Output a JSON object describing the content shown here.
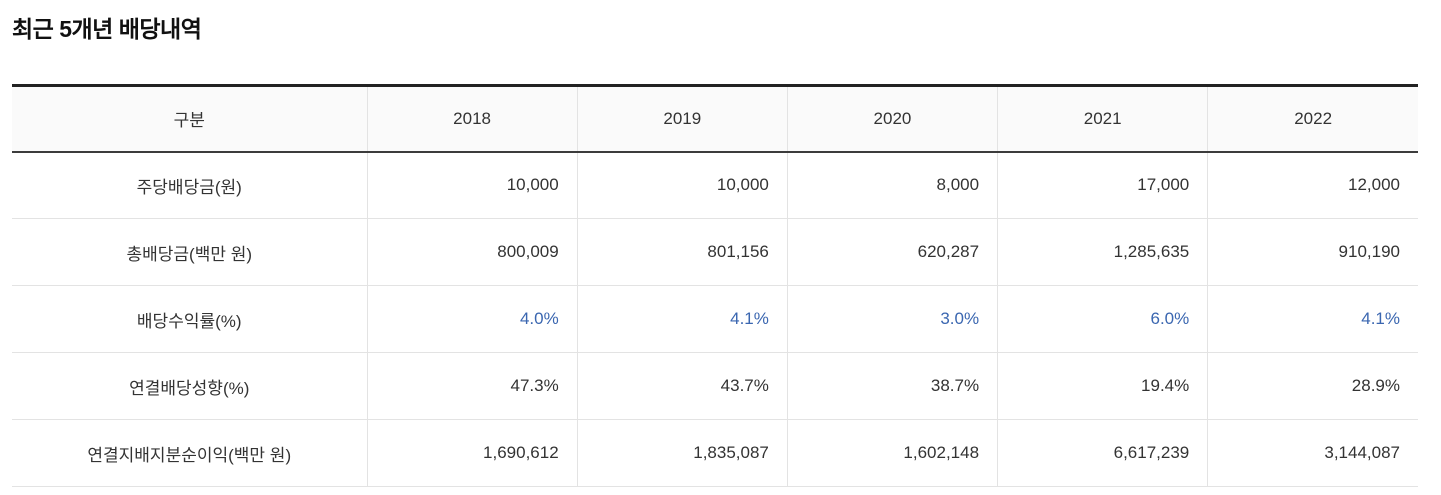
{
  "section": {
    "title": "최근 5개년 배당내역"
  },
  "table": {
    "columns": [
      "구분",
      "2018",
      "2019",
      "2020",
      "2021",
      "2022"
    ],
    "rows": [
      {
        "label": "주당배당금(원)",
        "values": [
          "10,000",
          "10,000",
          "8,000",
          "17,000",
          "12,000"
        ]
      },
      {
        "label": "총배당금(백만 원)",
        "values": [
          "800,009",
          "801,156",
          "620,287",
          "1,285,635",
          "910,190"
        ]
      },
      {
        "label": "배당수익률(%)",
        "values": [
          "4.0%",
          "4.1%",
          "3.0%",
          "6.0%",
          "4.1%"
        ]
      },
      {
        "label": "연결배당성향(%)",
        "values": [
          "47.3%",
          "43.7%",
          "38.7%",
          "19.4%",
          "28.9%"
        ]
      },
      {
        "label": "연결지배지분순이익(백만 원)",
        "values": [
          "1,690,612",
          "1,835,087",
          "1,602,148",
          "6,617,239",
          "3,144,087"
        ]
      }
    ]
  },
  "colors": {
    "title_text": "#111111",
    "text": "#333333",
    "accent_value_blue": "#3a66b0",
    "border_dark": "#222222",
    "border_header": "#3c3c3c",
    "border_light": "#e3e3e3",
    "header_bg": "#fafafa"
  },
  "chart_data": {
    "type": "table",
    "title": "최근 5개년 배당내역",
    "row_header": "구분",
    "categories": [
      "2018",
      "2019",
      "2020",
      "2021",
      "2022"
    ],
    "series": [
      {
        "name": "주당배당금(원)",
        "unit": "KRW",
        "values": [
          10000,
          10000,
          8000,
          17000,
          12000
        ]
      },
      {
        "name": "총배당금(백만 원)",
        "unit": "million KRW",
        "values": [
          800009,
          801156,
          620287,
          1285635,
          910190
        ]
      },
      {
        "name": "배당수익률(%)",
        "unit": "%",
        "values": [
          4.0,
          4.1,
          3.0,
          6.0,
          4.1
        ]
      },
      {
        "name": "연결배당성향(%)",
        "unit": "%",
        "values": [
          47.3,
          43.7,
          38.7,
          19.4,
          28.9
        ]
      },
      {
        "name": "연결지배지분순이익(백만 원)",
        "unit": "million KRW",
        "values": [
          1690612,
          1835087,
          1602148,
          6617239,
          3144087
        ]
      }
    ]
  }
}
